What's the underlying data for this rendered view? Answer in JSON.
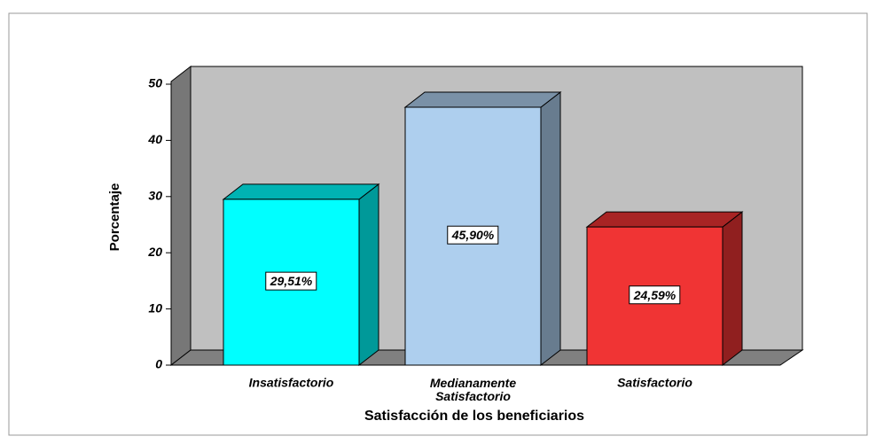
{
  "chart_data": {
    "type": "bar3d",
    "xlabel": "Satisfacción de los beneficiarios",
    "ylabel": "Porcentaje",
    "categories": [
      "Insatisfactorio",
      "Medianamente Satisfactorio",
      "Satisfactorio"
    ],
    "values": [
      29.51,
      45.9,
      24.59
    ],
    "value_labels": [
      "29,51%",
      "45,90%",
      "24,59%"
    ],
    "colors": [
      "#00ffff",
      "#aecfee",
      "#f03434"
    ],
    "ylim": [
      0,
      50
    ],
    "yticks": [
      0,
      10,
      20,
      30,
      40,
      50
    ],
    "grid": false
  }
}
